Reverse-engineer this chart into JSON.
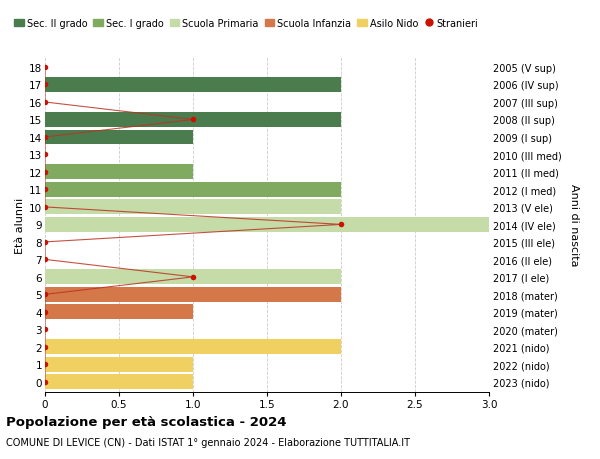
{
  "ages": [
    18,
    17,
    16,
    15,
    14,
    13,
    12,
    11,
    10,
    9,
    8,
    7,
    6,
    5,
    4,
    3,
    2,
    1,
    0
  ],
  "years": [
    "2005 (V sup)",
    "2006 (IV sup)",
    "2007 (III sup)",
    "2008 (II sup)",
    "2009 (I sup)",
    "2010 (III med)",
    "2011 (II med)",
    "2012 (I med)",
    "2013 (V ele)",
    "2014 (IV ele)",
    "2015 (III ele)",
    "2016 (II ele)",
    "2017 (I ele)",
    "2018 (mater)",
    "2019 (mater)",
    "2020 (mater)",
    "2021 (nido)",
    "2022 (nido)",
    "2023 (nido)"
  ],
  "bar_values": [
    0,
    2,
    0,
    2,
    1,
    0,
    1,
    2,
    2,
    3,
    0,
    0,
    2,
    2,
    1,
    0,
    2,
    1,
    1
  ],
  "bar_colors": [
    "#4a7c4e",
    "#4a7c4e",
    "#4a7c4e",
    "#4a7c4e",
    "#4a7c4e",
    "#80aa60",
    "#80aa60",
    "#80aa60",
    "#c5dba8",
    "#c5dba8",
    "#c5dba8",
    "#c5dba8",
    "#c5dba8",
    "#d4784a",
    "#d4784a",
    "#d4784a",
    "#f0d060",
    "#f0d060",
    "#f0d060"
  ],
  "stranieri_values": [
    0,
    0,
    0,
    1,
    0,
    0,
    0,
    0,
    0,
    2,
    0,
    0,
    1,
    0,
    0,
    0,
    0,
    0,
    0
  ],
  "stranieri_ages": [
    18,
    17,
    16,
    15,
    14,
    13,
    12,
    11,
    10,
    9,
    8,
    7,
    6,
    5,
    4,
    3,
    2,
    1,
    0
  ],
  "legend_labels": [
    "Sec. II grado",
    "Sec. I grado",
    "Scuola Primaria",
    "Scuola Infanzia",
    "Asilo Nido",
    "Stranieri"
  ],
  "legend_colors": [
    "#4a7c4e",
    "#80aa60",
    "#c5dba8",
    "#d4784a",
    "#f0d060",
    "#cc1100"
  ],
  "title": "Popolazione per età scolastica - 2024",
  "subtitle": "COMUNE DI LEVICE (CN) - Dati ISTAT 1° gennaio 2024 - Elaborazione TUTTITALIA.IT",
  "ylabel_left": "Età alunni",
  "ylabel_right": "Anni di nascita",
  "xlim": [
    0,
    3.0
  ],
  "bar_height": 0.85,
  "stranieri_color": "#cc1100",
  "line_color": "#bb3322",
  "bg_color": "#ffffff",
  "grid_color": "#cccccc",
  "dot_size": 4
}
